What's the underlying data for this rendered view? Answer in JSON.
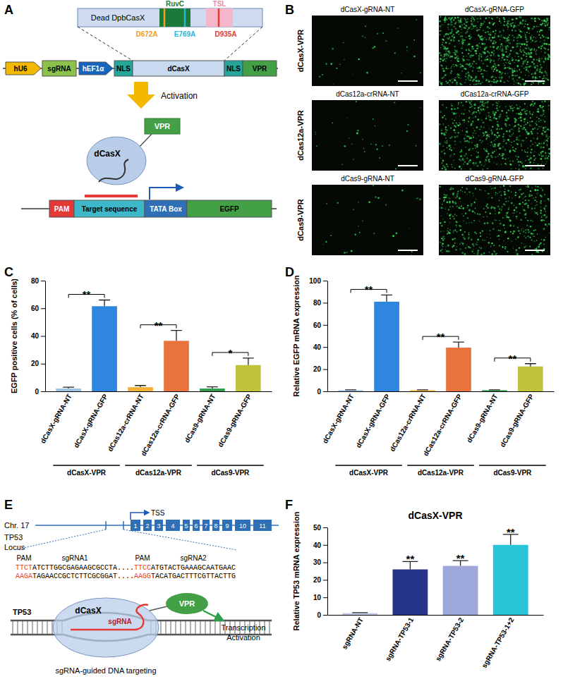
{
  "chart_data": [
    {
      "panel": "C",
      "type": "bar",
      "y_label": "EGFP positive cells (% of cells)",
      "categories": [
        "dCasX-gRNA-NT",
        "dCasX-gRNA-GFP",
        "dCas12a-crRNA-NT",
        "dCas12a-crRNA-GFP",
        "dCas9-gRNA-NT",
        "dCas9-gRNA-GFP"
      ],
      "values": [
        2,
        61.5,
        3,
        36.5,
        2,
        19
      ],
      "errors": [
        1,
        4.5,
        1.2,
        7.5,
        1.2,
        5
      ],
      "colors": [
        "#9cc3e6",
        "#2e86de",
        "#f2b134",
        "#e8743b",
        "#2e9e48",
        "#c2c23a"
      ],
      "ylim": [
        0,
        80
      ],
      "yticks": [
        0,
        20,
        40,
        60,
        80
      ],
      "significance": [
        {
          "from": 0,
          "to": 1,
          "text": "**"
        },
        {
          "from": 2,
          "to": 3,
          "text": "**"
        },
        {
          "from": 4,
          "to": 5,
          "text": "*"
        }
      ],
      "groups": [
        {
          "label": "dCasX-VPR",
          "from": 0,
          "to": 1
        },
        {
          "label": "dCas12a-VPR",
          "from": 2,
          "to": 3
        },
        {
          "label": "dCas9-VPR",
          "from": 4,
          "to": 5
        }
      ]
    },
    {
      "panel": "D",
      "type": "bar",
      "y_label": "Relative EGFP mRNA expression",
      "categories": [
        "dCasX-gRNA-NT",
        "dCasX-gRNA-GFP",
        "dCas12a-crRNA-NT",
        "dCas12a-crRNA-GFP",
        "dCas9-gRNA-NT",
        "dCas9-gRNA-GFP"
      ],
      "values": [
        1,
        81,
        1,
        39.5,
        1,
        22.5
      ],
      "errors": [
        0.3,
        6,
        0.3,
        5,
        0.3,
        2.5
      ],
      "colors": [
        "#9cc3e6",
        "#2e86de",
        "#f2b134",
        "#e8743b",
        "#2e9e48",
        "#c2c23a"
      ],
      "ylim": [
        0,
        100
      ],
      "yticks": [
        0,
        20,
        40,
        60,
        80,
        100
      ],
      "significance": [
        {
          "from": 0,
          "to": 1,
          "text": "**"
        },
        {
          "from": 2,
          "to": 3,
          "text": "**"
        },
        {
          "from": 4,
          "to": 5,
          "text": "**"
        }
      ],
      "groups": [
        {
          "label": "dCasX-VPR",
          "from": 0,
          "to": 1
        },
        {
          "label": "dCas12a-VPR",
          "from": 2,
          "to": 3
        },
        {
          "label": "dCas9-VPR",
          "from": 4,
          "to": 5
        }
      ]
    },
    {
      "panel": "F",
      "type": "bar",
      "title": "dCasX-VPR",
      "y_label": "Relative TP53 mRNA expression",
      "categories": [
        "sgRNA-NT",
        "sgRNA-TP53-1",
        "sgRNA-TP53-2",
        "sgRNA-TP53-1+2"
      ],
      "values": [
        1,
        26,
        28,
        40
      ],
      "errors": [
        0.3,
        4.5,
        3,
        6
      ],
      "colors": [
        "#c5cae9",
        "#27348b",
        "#9fa8da",
        "#29c5d6"
      ],
      "ylim": [
        0,
        50
      ],
      "yticks": [
        0,
        10,
        20,
        30,
        40,
        50
      ],
      "significance": [
        {
          "index": 1,
          "text": "**"
        },
        {
          "index": 2,
          "text": "**"
        },
        {
          "index": 3,
          "text": "**"
        }
      ]
    }
  ],
  "diagrams": {
    "A": {
      "letter": "A",
      "protein": "Dead DpbCasX",
      "domains": [
        "RuvC",
        "TSL"
      ],
      "mutations": [
        "D672A",
        "E769A",
        "D935A"
      ],
      "construct": [
        "hU6",
        "sgRNA",
        "hEF1α",
        "NLS",
        "dCasX",
        "NLS",
        "VPR"
      ],
      "arrow": "Activation",
      "complex": [
        "dCasX",
        "VPR"
      ],
      "reporter": [
        "PAM",
        "Target sequence",
        "TATA Box",
        "EGFP"
      ]
    },
    "B": {
      "letter": "B",
      "rows": [
        "dCasX-VPR",
        "dCas12a-VPR",
        "dCas9-VPR"
      ],
      "columns": [
        [
          "dCasX-gRNA-NT",
          "dCasX-gRNA-GFP"
        ],
        [
          "dCas12a-crRNA-NT",
          "dCas12a-crRNA-GFP"
        ],
        [
          "dCas9-gRNA-NT",
          "dCas9-gRNA-GFP"
        ]
      ]
    },
    "E": {
      "letter": "E",
      "chromosome": "Chr. 17",
      "gene": "TP53",
      "locus": "Locus",
      "tss": "TSS",
      "exons": [
        "1",
        "2",
        "3",
        "4",
        "5",
        "6",
        "7",
        "8",
        "9",
        "10",
        "11"
      ],
      "guides": [
        {
          "pam_label": "PAM",
          "name": "sgRNA1",
          "pam": "TTCT",
          "seq": "ATCTTGGCGAGAAGCGCCTA",
          "pam_rc": "AAGA",
          "seq_rc": "TAGAACCGCTCTTCGCGGAT"
        },
        {
          "pam_label": "PAM",
          "name": "sgRNA2",
          "pam": "TTCC",
          "seq": "ATGTACTGAAAGCAATGAAC",
          "pam_rc": "AAGG",
          "seq_rc": "TACATGACTTTCGTTACTTG"
        }
      ],
      "separator": "....",
      "protein": "dCasX",
      "guide": "sgRNA",
      "effector": "VPR",
      "caption": "sgRNA-guided DNA targeting",
      "result": [
        "Transcription",
        "Activation"
      ]
    }
  }
}
